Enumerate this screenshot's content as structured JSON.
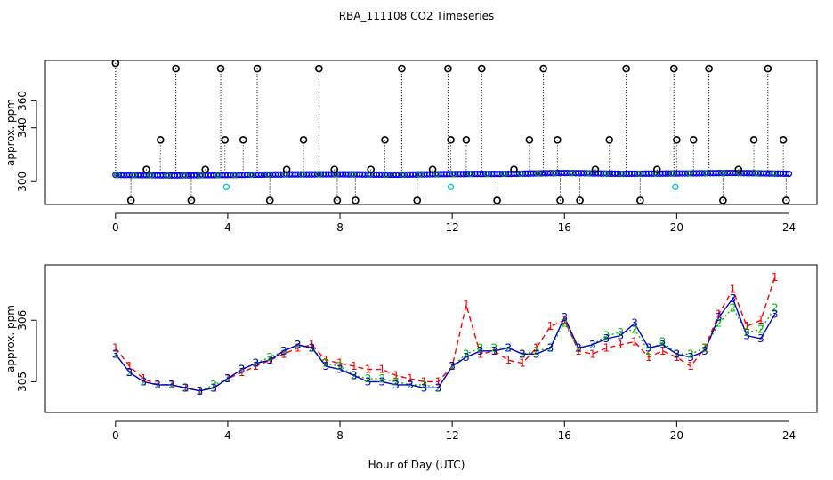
{
  "chart_data": [
    {
      "type": "scatter",
      "panel": "top",
      "title": "RBA_111108  CO2 Timeseries",
      "xlabel": "",
      "ylabel": "approx. ppm",
      "xlim": [
        -2.5,
        25.0
      ],
      "ylim": [
        283,
        390
      ],
      "x_ticks": [
        0,
        4,
        8,
        12,
        16,
        20,
        24
      ],
      "y_ticks": [
        300,
        340,
        360
      ],
      "grid": false,
      "baseline": {
        "x": [
          0.0,
          2.0,
          4.0,
          6.0,
          8.0,
          10.0,
          12.0,
          14.0,
          16.0,
          18.0,
          20.0,
          22.0,
          24.0
        ],
        "values": [
          305.0,
          304.6,
          304.9,
          305.3,
          305.4,
          305.1,
          305.6,
          305.7,
          306.4,
          305.8,
          306.0,
          306.4,
          305.8
        ]
      },
      "spikes": {
        "x": [
          0.0,
          0.55,
          1.1,
          1.6,
          2.15,
          2.7,
          3.2,
          3.75,
          3.9,
          4.55,
          5.05,
          5.5,
          6.1,
          6.7,
          7.25,
          7.8,
          7.9,
          8.55,
          9.1,
          9.6,
          10.2,
          10.75,
          11.3,
          11.85,
          11.95,
          12.5,
          13.05,
          13.6,
          14.2,
          14.75,
          15.25,
          15.75,
          15.85,
          16.55,
          17.1,
          17.6,
          18.2,
          18.7,
          19.3,
          19.9,
          20.0,
          20.6,
          21.15,
          21.65,
          22.2,
          22.75,
          23.25,
          23.8,
          23.9
        ],
        "values": [
          388,
          286,
          309,
          331,
          384,
          286,
          309,
          384,
          331,
          331,
          384,
          286,
          309,
          331,
          384,
          309,
          286,
          286,
          309,
          331,
          384,
          286,
          309,
          384,
          331,
          331,
          384,
          286,
          309,
          331,
          384,
          331,
          286,
          286,
          309,
          331,
          384,
          286,
          309,
          384,
          331,
          331,
          384,
          286,
          309,
          331,
          384,
          331,
          286
        ]
      },
      "outliers_cyan": {
        "x": [
          3.95,
          11.95,
          19.95
        ],
        "values": [
          296,
          296,
          296
        ]
      }
    },
    {
      "type": "line",
      "panel": "bottom",
      "title": "",
      "xlabel": "Hour of Day (UTC)",
      "ylabel": "approx. ppm",
      "xlim": [
        -2.5,
        25.0
      ],
      "ylim": [
        304.5,
        306.9
      ],
      "x_ticks": [
        0,
        4,
        8,
        12,
        16,
        20,
        24
      ],
      "y_ticks": [
        305.0,
        306.0
      ],
      "grid": false,
      "x": [
        0.0,
        0.5,
        1.0,
        1.5,
        2.0,
        2.5,
        3.0,
        3.5,
        4.0,
        4.5,
        5.0,
        5.5,
        6.0,
        6.5,
        7.0,
        7.5,
        8.0,
        8.5,
        9.0,
        9.5,
        10.0,
        10.5,
        11.0,
        11.5,
        12.0,
        12.5,
        13.0,
        13.5,
        14.0,
        14.5,
        15.0,
        15.5,
        16.0,
        16.5,
        17.0,
        17.5,
        18.0,
        18.5,
        19.0,
        19.5,
        20.0,
        20.5,
        21.0,
        21.5,
        22.0,
        22.5,
        23.0,
        23.5
      ],
      "series": [
        {
          "name": "1",
          "color": "#ff0000",
          "values": [
            305.55,
            305.25,
            305.05,
            304.95,
            304.95,
            304.9,
            304.85,
            304.9,
            305.05,
            305.15,
            305.25,
            305.35,
            305.45,
            305.55,
            305.6,
            305.35,
            305.3,
            305.25,
            305.2,
            305.2,
            305.1,
            305.05,
            305.0,
            305.0,
            305.25,
            306.25,
            305.45,
            305.5,
            305.35,
            305.3,
            305.55,
            305.9,
            306.0,
            305.5,
            305.45,
            305.55,
            305.6,
            305.65,
            305.4,
            305.5,
            305.4,
            305.25,
            305.55,
            306.1,
            306.5,
            305.9,
            306.0,
            306.7
          ]
        },
        {
          "name": "2",
          "color": "#00bb00",
          "values": [
            305.45,
            305.15,
            305.0,
            304.95,
            304.95,
            304.9,
            304.85,
            304.95,
            305.05,
            305.2,
            305.3,
            305.4,
            305.5,
            305.6,
            305.55,
            305.3,
            305.25,
            305.1,
            305.05,
            305.05,
            305.0,
            304.95,
            304.95,
            304.9,
            305.25,
            305.45,
            305.55,
            305.55,
            305.55,
            305.45,
            305.5,
            305.55,
            305.95,
            305.55,
            305.6,
            305.75,
            305.8,
            305.85,
            305.5,
            305.65,
            305.45,
            305.45,
            305.55,
            305.95,
            306.2,
            305.8,
            305.85,
            306.2
          ]
        },
        {
          "name": "3",
          "color": "#0000cc",
          "values": [
            305.45,
            305.15,
            305.0,
            304.95,
            304.95,
            304.9,
            304.85,
            304.9,
            305.05,
            305.2,
            305.3,
            305.35,
            305.5,
            305.6,
            305.55,
            305.25,
            305.2,
            305.1,
            305.0,
            305.0,
            304.95,
            304.95,
            304.9,
            304.9,
            305.25,
            305.4,
            305.5,
            305.5,
            305.55,
            305.45,
            305.45,
            305.55,
            306.05,
            305.55,
            305.6,
            305.7,
            305.75,
            305.95,
            305.55,
            305.6,
            305.45,
            305.4,
            305.5,
            306.05,
            306.35,
            305.75,
            305.7,
            306.1
          ]
        }
      ]
    }
  ]
}
